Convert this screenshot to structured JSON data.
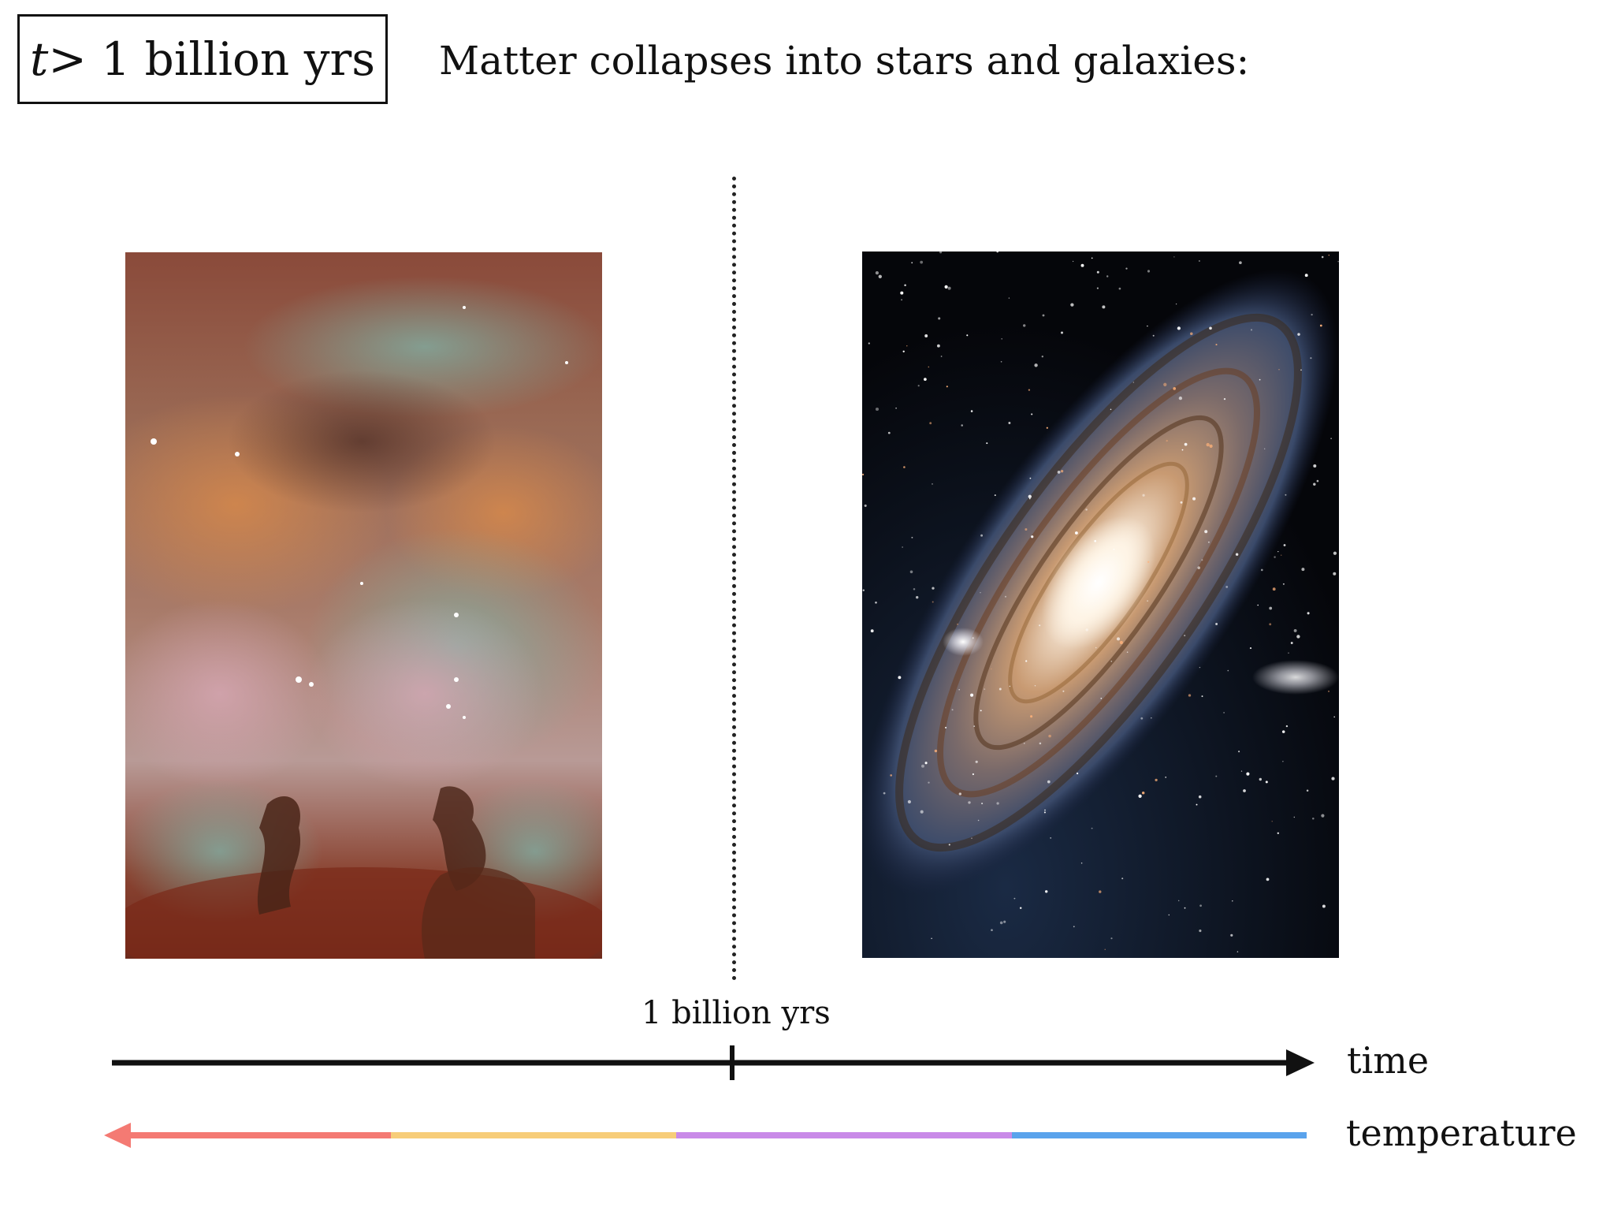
{
  "header": {
    "time_var": "t",
    "time_rest": " > 1 billion yrs",
    "headline": "Matter collapses into stars and galaxies:"
  },
  "timeline": {
    "tick_label": "1 billion yrs",
    "time_label": "time",
    "temperature_label": "temperature"
  },
  "colors": {
    "temperature_segments": [
      "#f47a73",
      "#f7cd79",
      "#c98ae8",
      "#5aa3ec"
    ],
    "axis": "#111111"
  },
  "images": {
    "left": "nebula-photo",
    "right": "spiral-galaxy-photo"
  }
}
